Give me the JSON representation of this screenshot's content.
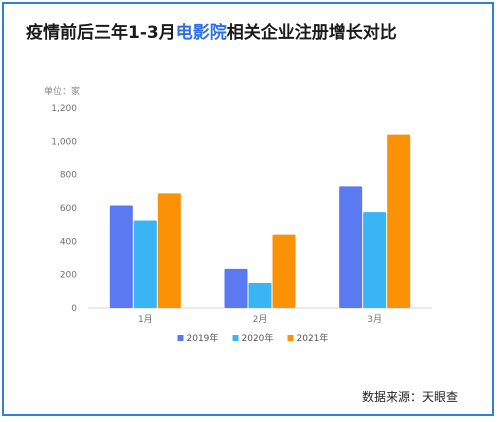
{
  "title": {
    "prefix": "疫情前后三年1-3月",
    "highlight": "电影院",
    "suffix": "相关企业注册增长对比"
  },
  "unit_label": "单位：家",
  "source": "数据来源：天眼查",
  "colors": {
    "accent": "#2f6fe8",
    "border": "#2f7fe0"
  },
  "chart_data": {
    "type": "bar",
    "categories": [
      "1月",
      "2月",
      "3月"
    ],
    "series": [
      {
        "name": "2019年",
        "values": [
          615,
          235,
          730
        ],
        "color": "#5b79f0"
      },
      {
        "name": "2020年",
        "values": [
          525,
          150,
          575
        ],
        "color": "#3ab4f2"
      },
      {
        "name": "2021年",
        "values": [
          688,
          440,
          1040
        ],
        "color": "#fb9104"
      }
    ],
    "yticks": [
      "0",
      "200",
      "400",
      "600",
      "800",
      "1,000",
      "1,200"
    ],
    "ylim": [
      0,
      1200
    ],
    "grid": false,
    "legend_position": "bottom"
  }
}
